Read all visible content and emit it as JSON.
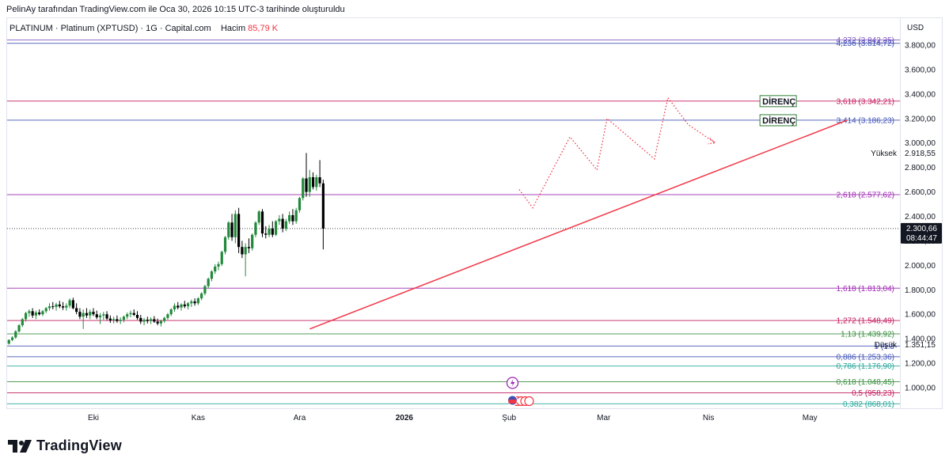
{
  "caption": "PelinAy tarafından TradingView.com ile Oca 30, 2026 10:15 UTC-3 tarihinde oluşturuldu",
  "symbol": {
    "name": "PLATINUM · Platinum (XPTUSD) · 1G · Capital.com",
    "volume_label": "Hacim",
    "volume_value": "85,79 K"
  },
  "currency": "USD",
  "brand": "TradingView",
  "colors": {
    "up": "#22893c",
    "down": "#000000",
    "trendline": "#f23645",
    "projection": "#f23645",
    "price_marker_bg": "#131722"
  },
  "chart_data": {
    "type": "candlestick",
    "y_range": [
      800,
      3900
    ],
    "x_ticks": [
      {
        "label": "Eki",
        "x": 0
      },
      {
        "label": "Kas",
        "x": 31
      },
      {
        "label": "Ara",
        "x": 61
      },
      {
        "label": "2026",
        "x": 92,
        "bold": true
      },
      {
        "label": "Şub",
        "x": 123
      },
      {
        "label": "Mar",
        "x": 151
      },
      {
        "label": "Nis",
        "x": 182
      },
      {
        "label": "May",
        "x": 212
      }
    ],
    "y_ticks": [
      "1.000,00",
      "1.200,00",
      "1.400,00",
      "1.600,00",
      "1.800,00",
      "2.000,00",
      "2.200,00",
      "2.400,00",
      "2.600,00",
      "2.800,00",
      "3.000,00",
      "3.200,00",
      "3.400,00",
      "3.600,00",
      "3.800,00"
    ],
    "y_tick_values": [
      1000,
      1200,
      1400,
      1600,
      1800,
      2000,
      2200,
      2400,
      2600,
      2800,
      3000,
      3200,
      3400,
      3600,
      3800
    ],
    "fib_levels": [
      {
        "label": "4,272 (3.842,35)",
        "value": 3842.35,
        "color": "#7e57c2"
      },
      {
        "label": "4,236 (3.814,72)",
        "value": 3814.72,
        "color": "#3f51b5"
      },
      {
        "label": "3,618 (3.342,21)",
        "value": 3342.21,
        "color": "#c2185b"
      },
      {
        "label": "3,414 (3.186,23)",
        "value": 3186.23,
        "color": "#3f51b5"
      },
      {
        "label": "2,618 (2.577,62)",
        "value": 2577.62,
        "color": "#9c27b0"
      },
      {
        "label": "1,618 (1.813,04)",
        "value": 1813.04,
        "color": "#9c27b0"
      },
      {
        "label": "1,272 (1.548,49)",
        "value": 1548.49,
        "color": "#c2185b"
      },
      {
        "label": "1,13 (1.439,92)",
        "value": 1439.92,
        "color": "#388e3c"
      },
      {
        "label": "1 (1.3",
        "value": 1340,
        "color": "#3f51b5"
      },
      {
        "label": "0,886 (1.253,36)",
        "value": 1253.36,
        "color": "#3f51b5"
      },
      {
        "label": "0,786 (1.176,90)",
        "value": 1176.9,
        "color": "#26a69a"
      },
      {
        "label": "0,618 (1.048,45)",
        "value": 1048.45,
        "color": "#388e3c"
      },
      {
        "label": "0,5 (958,23)",
        "value": 958.23,
        "color": "#c2185b"
      },
      {
        "label": "0,382 (868,01)",
        "value": 868.01,
        "color": "#26a69a"
      }
    ],
    "current_price": {
      "value": 2300.66,
      "label": "2.300,66",
      "countdown": "08:44:47"
    },
    "high_marker": {
      "label": "Yüksek",
      "value_label": "2.918,55",
      "value": 2918.55
    },
    "low_marker": {
      "label": "Düşük",
      "value_label": "1.351,15",
      "value": 1351.15
    },
    "annotations": [
      {
        "text": "DİRENÇ",
        "x": 182,
        "value": 3342
      },
      {
        "text": "DİRENÇ",
        "x": 182,
        "value": 3186
      }
    ],
    "trendline": {
      "from": {
        "x": 64,
        "value": 1480
      },
      "to": {
        "x": 223,
        "value": 3186
      }
    },
    "projection": [
      {
        "x": 126,
        "value": 2620
      },
      {
        "x": 130,
        "value": 2470
      },
      {
        "x": 141,
        "value": 3050
      },
      {
        "x": 149,
        "value": 2780
      },
      {
        "x": 152,
        "value": 3200
      },
      {
        "x": 166,
        "value": 2870
      },
      {
        "x": 170,
        "value": 3370
      },
      {
        "x": 176,
        "value": 3150
      },
      {
        "x": 184,
        "value": 3000
      }
    ],
    "candles": [
      {
        "x": -35,
        "o": 1360,
        "h": 1385,
        "l": 1345,
        "c": 1370
      },
      {
        "x": -34,
        "o": 1370,
        "h": 1390,
        "l": 1355,
        "c": 1365
      },
      {
        "x": -33,
        "o": 1365,
        "h": 1385,
        "l": 1350,
        "c": 1375
      },
      {
        "x": -32,
        "o": 1375,
        "h": 1395,
        "l": 1360,
        "c": 1380
      },
      {
        "x": -31,
        "o": 1380,
        "h": 1400,
        "l": 1365,
        "c": 1378
      },
      {
        "x": -30,
        "o": 1378,
        "h": 1395,
        "l": 1360,
        "c": 1385
      },
      {
        "x": -29,
        "o": 1385,
        "h": 1405,
        "l": 1370,
        "c": 1390
      },
      {
        "x": -28,
        "o": 1390,
        "h": 1410,
        "l": 1375,
        "c": 1385
      },
      {
        "x": -27,
        "o": 1385,
        "h": 1400,
        "l": 1365,
        "c": 1375
      },
      {
        "x": -26,
        "o": 1375,
        "h": 1390,
        "l": 1350,
        "c": 1360
      },
      {
        "x": -25,
        "o": 1360,
        "h": 1395,
        "l": 1352,
        "c": 1390
      },
      {
        "x": -24,
        "o": 1390,
        "h": 1420,
        "l": 1380,
        "c": 1410
      },
      {
        "x": -23,
        "o": 1410,
        "h": 1470,
        "l": 1400,
        "c": 1460
      },
      {
        "x": -22,
        "o": 1460,
        "h": 1520,
        "l": 1450,
        "c": 1510
      },
      {
        "x": -21,
        "o": 1510,
        "h": 1570,
        "l": 1495,
        "c": 1560
      },
      {
        "x": -20,
        "o": 1560,
        "h": 1620,
        "l": 1540,
        "c": 1610
      },
      {
        "x": -19,
        "o": 1610,
        "h": 1640,
        "l": 1580,
        "c": 1625
      },
      {
        "x": -18,
        "o": 1625,
        "h": 1650,
        "l": 1570,
        "c": 1590
      },
      {
        "x": -17,
        "o": 1590,
        "h": 1630,
        "l": 1560,
        "c": 1615
      },
      {
        "x": -16,
        "o": 1615,
        "h": 1640,
        "l": 1590,
        "c": 1600
      },
      {
        "x": -15,
        "o": 1600,
        "h": 1635,
        "l": 1585,
        "c": 1625
      },
      {
        "x": -14,
        "o": 1625,
        "h": 1660,
        "l": 1610,
        "c": 1650
      },
      {
        "x": -13,
        "o": 1650,
        "h": 1690,
        "l": 1630,
        "c": 1665
      },
      {
        "x": -12,
        "o": 1665,
        "h": 1700,
        "l": 1640,
        "c": 1660
      },
      {
        "x": -11,
        "o": 1660,
        "h": 1695,
        "l": 1630,
        "c": 1680
      },
      {
        "x": -10,
        "o": 1680,
        "h": 1710,
        "l": 1650,
        "c": 1665
      },
      {
        "x": -9,
        "o": 1665,
        "h": 1700,
        "l": 1635,
        "c": 1655
      },
      {
        "x": -8,
        "o": 1655,
        "h": 1690,
        "l": 1630,
        "c": 1670
      },
      {
        "x": -7,
        "o": 1670,
        "h": 1730,
        "l": 1650,
        "c": 1715
      },
      {
        "x": -6,
        "o": 1715,
        "h": 1735,
        "l": 1640,
        "c": 1650
      },
      {
        "x": -5,
        "o": 1650,
        "h": 1690,
        "l": 1600,
        "c": 1620
      },
      {
        "x": -4,
        "o": 1620,
        "h": 1650,
        "l": 1560,
        "c": 1580
      },
      {
        "x": -3,
        "o": 1580,
        "h": 1640,
        "l": 1480,
        "c": 1610
      },
      {
        "x": -2,
        "o": 1610,
        "h": 1650,
        "l": 1570,
        "c": 1590
      },
      {
        "x": -1,
        "o": 1590,
        "h": 1640,
        "l": 1560,
        "c": 1620
      },
      {
        "x": 0,
        "o": 1620,
        "h": 1650,
        "l": 1585,
        "c": 1600
      },
      {
        "x": 1,
        "o": 1600,
        "h": 1630,
        "l": 1560,
        "c": 1575
      },
      {
        "x": 2,
        "o": 1575,
        "h": 1610,
        "l": 1520,
        "c": 1590
      },
      {
        "x": 3,
        "o": 1590,
        "h": 1620,
        "l": 1555,
        "c": 1600
      },
      {
        "x": 4,
        "o": 1600,
        "h": 1625,
        "l": 1550,
        "c": 1565
      },
      {
        "x": 5,
        "o": 1565,
        "h": 1590,
        "l": 1530,
        "c": 1550
      },
      {
        "x": 6,
        "o": 1550,
        "h": 1580,
        "l": 1525,
        "c": 1560
      },
      {
        "x": 7,
        "o": 1560,
        "h": 1590,
        "l": 1530,
        "c": 1545
      },
      {
        "x": 8,
        "o": 1545,
        "h": 1575,
        "l": 1520,
        "c": 1555
      },
      {
        "x": 9,
        "o": 1555,
        "h": 1590,
        "l": 1535,
        "c": 1580
      },
      {
        "x": 10,
        "o": 1580,
        "h": 1615,
        "l": 1560,
        "c": 1600
      },
      {
        "x": 11,
        "o": 1600,
        "h": 1630,
        "l": 1575,
        "c": 1610
      },
      {
        "x": 12,
        "o": 1610,
        "h": 1640,
        "l": 1585,
        "c": 1595
      },
      {
        "x": 13,
        "o": 1595,
        "h": 1625,
        "l": 1555,
        "c": 1570
      },
      {
        "x": 14,
        "o": 1570,
        "h": 1595,
        "l": 1520,
        "c": 1540
      },
      {
        "x": 15,
        "o": 1540,
        "h": 1570,
        "l": 1510,
        "c": 1555
      },
      {
        "x": 16,
        "o": 1555,
        "h": 1580,
        "l": 1525,
        "c": 1545
      },
      {
        "x": 17,
        "o": 1545,
        "h": 1575,
        "l": 1520,
        "c": 1560
      },
      {
        "x": 18,
        "o": 1560,
        "h": 1585,
        "l": 1530,
        "c": 1540
      },
      {
        "x": 19,
        "o": 1540,
        "h": 1565,
        "l": 1510,
        "c": 1525
      },
      {
        "x": 20,
        "o": 1525,
        "h": 1555,
        "l": 1500,
        "c": 1545
      },
      {
        "x": 21,
        "o": 1545,
        "h": 1580,
        "l": 1530,
        "c": 1570
      },
      {
        "x": 22,
        "o": 1570,
        "h": 1610,
        "l": 1555,
        "c": 1600
      },
      {
        "x": 23,
        "o": 1600,
        "h": 1650,
        "l": 1585,
        "c": 1640
      },
      {
        "x": 24,
        "o": 1640,
        "h": 1690,
        "l": 1620,
        "c": 1670
      },
      {
        "x": 25,
        "o": 1670,
        "h": 1700,
        "l": 1640,
        "c": 1655
      },
      {
        "x": 26,
        "o": 1655,
        "h": 1690,
        "l": 1630,
        "c": 1680
      },
      {
        "x": 27,
        "o": 1680,
        "h": 1710,
        "l": 1650,
        "c": 1665
      },
      {
        "x": 28,
        "o": 1665,
        "h": 1700,
        "l": 1640,
        "c": 1690
      },
      {
        "x": 29,
        "o": 1690,
        "h": 1720,
        "l": 1660,
        "c": 1705
      },
      {
        "x": 30,
        "o": 1705,
        "h": 1730,
        "l": 1670,
        "c": 1690
      },
      {
        "x": 31,
        "o": 1690,
        "h": 1740,
        "l": 1675,
        "c": 1730
      },
      {
        "x": 32,
        "o": 1730,
        "h": 1780,
        "l": 1715,
        "c": 1770
      },
      {
        "x": 33,
        "o": 1770,
        "h": 1840,
        "l": 1755,
        "c": 1830
      },
      {
        "x": 34,
        "o": 1830,
        "h": 1900,
        "l": 1810,
        "c": 1890
      },
      {
        "x": 35,
        "o": 1890,
        "h": 1960,
        "l": 1870,
        "c": 1950
      },
      {
        "x": 36,
        "o": 1950,
        "h": 2010,
        "l": 1930,
        "c": 1990
      },
      {
        "x": 37,
        "o": 1990,
        "h": 2030,
        "l": 1960,
        "c": 2010
      },
      {
        "x": 38,
        "o": 2010,
        "h": 2120,
        "l": 1995,
        "c": 2110
      },
      {
        "x": 39,
        "o": 2110,
        "h": 2240,
        "l": 2090,
        "c": 2230
      },
      {
        "x": 40,
        "o": 2230,
        "h": 2360,
        "l": 2210,
        "c": 2350
      },
      {
        "x": 41,
        "o": 2350,
        "h": 2420,
        "l": 2200,
        "c": 2230
      },
      {
        "x": 42,
        "o": 2230,
        "h": 2450,
        "l": 2180,
        "c": 2420
      },
      {
        "x": 43,
        "o": 2420,
        "h": 2470,
        "l": 2100,
        "c": 2150
      },
      {
        "x": 44,
        "o": 2150,
        "h": 2200,
        "l": 2060,
        "c": 2090
      },
      {
        "x": 45,
        "o": 2090,
        "h": 2180,
        "l": 1910,
        "c": 2150
      },
      {
        "x": 46,
        "o": 2150,
        "h": 2220,
        "l": 2100,
        "c": 2140
      },
      {
        "x": 47,
        "o": 2140,
        "h": 2260,
        "l": 2120,
        "c": 2250
      },
      {
        "x": 48,
        "o": 2250,
        "h": 2360,
        "l": 2230,
        "c": 2350
      },
      {
        "x": 49,
        "o": 2350,
        "h": 2450,
        "l": 2330,
        "c": 2440
      },
      {
        "x": 50,
        "o": 2440,
        "h": 2460,
        "l": 2230,
        "c": 2260
      },
      {
        "x": 51,
        "o": 2260,
        "h": 2320,
        "l": 2220,
        "c": 2250
      },
      {
        "x": 52,
        "o": 2250,
        "h": 2330,
        "l": 2230,
        "c": 2300
      },
      {
        "x": 53,
        "o": 2300,
        "h": 2360,
        "l": 2230,
        "c": 2250
      },
      {
        "x": 54,
        "o": 2250,
        "h": 2370,
        "l": 2240,
        "c": 2360
      },
      {
        "x": 55,
        "o": 2360,
        "h": 2410,
        "l": 2330,
        "c": 2380
      },
      {
        "x": 56,
        "o": 2380,
        "h": 2420,
        "l": 2270,
        "c": 2300
      },
      {
        "x": 57,
        "o": 2300,
        "h": 2380,
        "l": 2280,
        "c": 2360
      },
      {
        "x": 58,
        "o": 2360,
        "h": 2440,
        "l": 2340,
        "c": 2410
      },
      {
        "x": 59,
        "o": 2410,
        "h": 2460,
        "l": 2330,
        "c": 2360
      },
      {
        "x": 60,
        "o": 2360,
        "h": 2470,
        "l": 2340,
        "c": 2450
      },
      {
        "x": 61,
        "o": 2450,
        "h": 2560,
        "l": 2430,
        "c": 2550
      },
      {
        "x": 62,
        "o": 2550,
        "h": 2720,
        "l": 2530,
        "c": 2710
      },
      {
        "x": 63,
        "o": 2710,
        "h": 2918,
        "l": 2560,
        "c": 2600
      },
      {
        "x": 64,
        "o": 2600,
        "h": 2780,
        "l": 2560,
        "c": 2720
      },
      {
        "x": 65,
        "o": 2720,
        "h": 2760,
        "l": 2620,
        "c": 2640
      },
      {
        "x": 66,
        "o": 2640,
        "h": 2740,
        "l": 2610,
        "c": 2720
      },
      {
        "x": 67,
        "o": 2720,
        "h": 2860,
        "l": 2640,
        "c": 2670
      },
      {
        "x": 68,
        "o": 2670,
        "h": 2700,
        "l": 2130,
        "c": 2300
      }
    ]
  }
}
